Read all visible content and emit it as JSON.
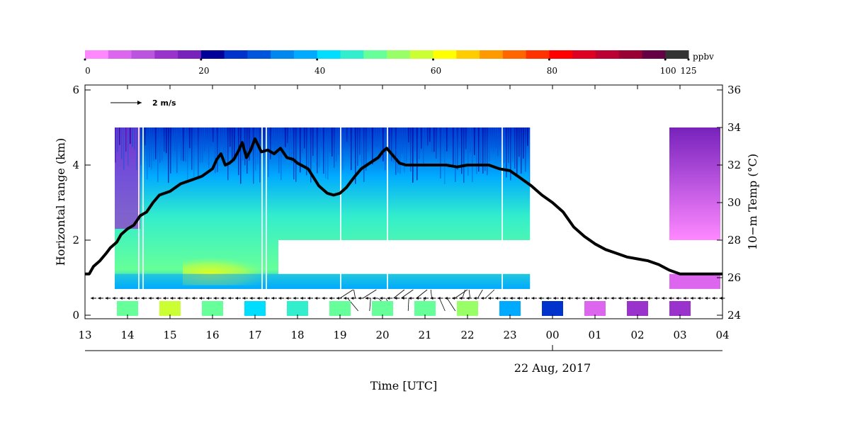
{
  "chart_data": {
    "type": "heatmap",
    "colorbar": {
      "unit": "ppbv",
      "tick_labels": [
        "0",
        "20",
        "40",
        "60",
        "80",
        "100",
        "125"
      ],
      "tick_values": [
        0,
        20,
        40,
        60,
        80,
        100,
        125
      ],
      "colors": [
        "#ff88ff",
        "#dd66ee",
        "#bb55e0",
        "#9933cc",
        "#7722bb",
        "#000099",
        "#0033cc",
        "#0055dd",
        "#0088ee",
        "#00aaff",
        "#00ddff",
        "#33eecc",
        "#66ff99",
        "#99ff66",
        "#ccff33",
        "#ffff00",
        "#ffcc00",
        "#ff9900",
        "#ff6600",
        "#ff3300",
        "#ff0000",
        "#dd0022",
        "#bb0033",
        "#990033",
        "#660044",
        "#333333"
      ]
    },
    "xlabel": "Time [UTC]",
    "date_label": "22 Aug, 2017",
    "x_tick_labels": [
      "13",
      "14",
      "15",
      "16",
      "17",
      "18",
      "19",
      "20",
      "21",
      "22",
      "23",
      "00",
      "01",
      "02",
      "03",
      "04"
    ],
    "y_left": {
      "label": "Horizontal range (km)",
      "ticks": [
        "0",
        "2",
        "4",
        "6"
      ],
      "range": [
        0,
        6
      ]
    },
    "y_right": {
      "label": "10−m Temp (°C)",
      "ticks": [
        "24",
        "26",
        "28",
        "30",
        "32",
        "34",
        "36"
      ],
      "range": [
        24,
        36
      ]
    },
    "wind_scale_label": "2 m/s",
    "temperature_series": {
      "name": "10-m Temp",
      "x_hours": [
        13.0,
        13.1,
        13.2,
        13.35,
        13.5,
        13.6,
        13.75,
        13.85,
        14.0,
        14.15,
        14.3,
        14.45,
        14.6,
        14.75,
        15.0,
        15.25,
        15.5,
        15.75,
        16.0,
        16.1,
        16.2,
        16.3,
        16.4,
        16.5,
        16.6,
        16.7,
        16.8,
        16.9,
        17.0,
        17.15,
        17.3,
        17.45,
        17.6,
        17.75,
        17.9,
        18.0,
        18.25,
        18.5,
        18.7,
        18.85,
        19.0,
        19.15,
        19.35,
        19.5,
        19.7,
        19.9,
        20.0,
        20.1,
        20.25,
        20.4,
        20.55,
        20.7,
        21.0,
        21.25,
        21.5,
        21.75,
        22.0,
        22.25,
        22.5,
        22.75,
        23.0,
        23.25,
        23.5,
        23.75,
        24.0,
        24.25,
        24.5,
        24.75,
        25.0,
        25.25,
        25.5,
        25.75,
        26.0,
        26.25,
        26.5,
        26.75,
        27.0,
        27.25,
        27.5,
        27.75,
        28.0
      ],
      "y_celsius": [
        26.2,
        26.2,
        26.6,
        26.9,
        27.3,
        27.6,
        27.9,
        28.3,
        28.6,
        28.8,
        29.3,
        29.5,
        30.0,
        30.4,
        30.6,
        31.0,
        31.2,
        31.4,
        31.8,
        32.3,
        32.6,
        32.0,
        32.1,
        32.3,
        32.7,
        33.2,
        32.4,
        32.8,
        33.4,
        32.7,
        32.8,
        32.6,
        32.9,
        32.4,
        32.3,
        32.1,
        31.8,
        30.9,
        30.5,
        30.4,
        30.5,
        30.8,
        31.4,
        31.8,
        32.1,
        32.4,
        32.7,
        32.9,
        32.5,
        32.1,
        32.0,
        32.0,
        32.0,
        32.0,
        32.0,
        31.9,
        32.0,
        32.0,
        32.0,
        31.8,
        31.7,
        31.3,
        30.9,
        30.4,
        30.0,
        29.5,
        28.7,
        28.2,
        27.8,
        27.5,
        27.3,
        27.1,
        27.0,
        26.9,
        26.7,
        26.4,
        26.2,
        26.2,
        26.2,
        26.2,
        26.2
      ]
    },
    "surface_ozone_boxes": [
      {
        "hour": 14,
        "ppbv": 50
      },
      {
        "hour": 15,
        "ppbv": 56
      },
      {
        "hour": 16,
        "ppbv": 50
      },
      {
        "hour": 17,
        "ppbv": 42
      },
      {
        "hour": 18,
        "ppbv": 46
      },
      {
        "hour": 19,
        "ppbv": 48
      },
      {
        "hour": 20,
        "ppbv": 50
      },
      {
        "hour": 21,
        "ppbv": 50
      },
      {
        "hour": 22,
        "ppbv": 52
      },
      {
        "hour": 23,
        "ppbv": 38
      },
      {
        "hour": 24,
        "ppbv": 24
      },
      {
        "hour": 25,
        "ppbv": 6
      },
      {
        "hour": 26,
        "ppbv": 14
      },
      {
        "hour": 27,
        "ppbv": 14
      }
    ],
    "lidar_coverage": [
      {
        "start_hour": 13.7,
        "end_hour": 23.47,
        "min_km": 0.7,
        "max_km": 5.0
      },
      {
        "start_hour": 26.75,
        "end_hour": 27.95,
        "min_km": 0.7,
        "max_km": 5.0
      }
    ]
  }
}
